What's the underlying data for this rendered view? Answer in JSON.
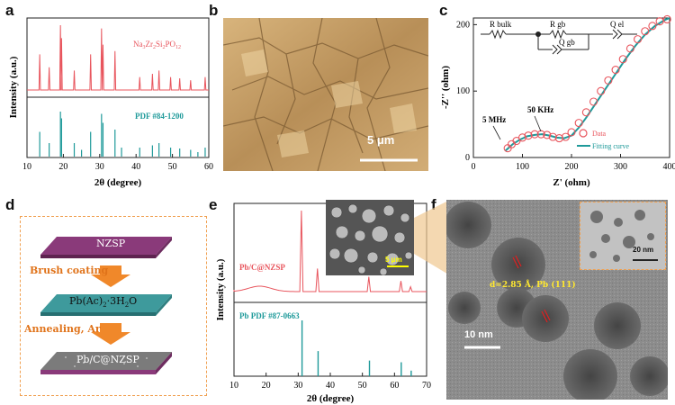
{
  "panels": {
    "a": {
      "label": "a",
      "upper_legend": "Na3Zr2Si2PO12",
      "lower_legend": "PDF #84-1200",
      "xlabel": "2θ (degree)",
      "ylabel": "Intensity (a.u.)",
      "xticks": [
        "10",
        "20",
        "30",
        "40",
        "50",
        "60"
      ],
      "upper_color": "#e8555d",
      "lower_color": "#1f9a9a"
    },
    "b": {
      "label": "b",
      "scale": "5 μm"
    },
    "c": {
      "label": "c",
      "xlabel": "Z' (ohm)",
      "ylabel": "-Z'' (ohm)",
      "xticks": [
        "0",
        "100",
        "200",
        "300",
        "400"
      ],
      "yticks": [
        "0",
        "100",
        "200"
      ],
      "ann_5mhz": "5 MHz",
      "ann_50khz": "50 KHz",
      "legend_data": "Data",
      "legend_fit": "Fitting curve",
      "circuit": {
        "rbulk": "R bulk",
        "rgb": "R gb",
        "qel": "Q el",
        "qgb": "Q gb"
      },
      "data_color": "#e8555d",
      "fit_color": "#1f9a9a"
    },
    "d": {
      "label": "d",
      "layer1": "NZSP",
      "step1": "Brush coating",
      "layer2": "Pb(Ac)2·3H2O",
      "step2": "Annealing, Ar",
      "layer3": "Pb/C@NZSP",
      "arrow_color": "#f0882a",
      "border_color": "#f0a050"
    },
    "e": {
      "label": "e",
      "upper_legend": "Pb/C@NZSP",
      "lower_legend": "Pb PDF #87-0663",
      "xlabel": "2θ (degree)",
      "ylabel": "Intensity (a.u.)",
      "xticks": [
        "10",
        "20",
        "30",
        "40",
        "50",
        "60",
        "70"
      ],
      "inset_scale": "5 μm"
    },
    "f": {
      "label": "f",
      "annotation": "d=2.85 Å, Pb (111)",
      "scale": "10 nm",
      "inset_scale": "20 nm"
    }
  },
  "chart_data": [
    {
      "type": "line",
      "panel": "a",
      "xlim": [
        10,
        60
      ],
      "series": [
        {
          "name": "Na3Zr2Si2PO12",
          "peaks_x": [
            13.5,
            16.1,
            19.2,
            19.5,
            23.0,
            27.5,
            30.5,
            30.9,
            34.2,
            41.0,
            44.5,
            46.3,
            49.5,
            52.0,
            55.0,
            59.0
          ],
          "peaks_y": [
            0.55,
            0.35,
            1.0,
            0.8,
            0.3,
            0.55,
            0.95,
            0.7,
            0.6,
            0.2,
            0.25,
            0.3,
            0.2,
            0.18,
            0.15,
            0.2
          ]
        },
        {
          "name": "PDF #84-1200",
          "peaks_x": [
            13.5,
            16.1,
            19.2,
            19.5,
            23.0,
            25.0,
            27.5,
            30.5,
            30.9,
            34.2,
            36.0,
            41.0,
            44.5,
            46.3,
            49.5,
            52.0,
            55.0,
            57.0,
            59.0
          ],
          "peaks_y": [
            0.55,
            0.3,
            1.0,
            0.85,
            0.3,
            0.15,
            0.55,
            0.95,
            0.75,
            0.6,
            0.2,
            0.2,
            0.25,
            0.3,
            0.2,
            0.18,
            0.15,
            0.1,
            0.2
          ]
        }
      ]
    },
    {
      "type": "scatter",
      "panel": "c",
      "xlim": [
        0,
        400
      ],
      "ylim": [
        0,
        210
      ],
      "series": [
        {
          "name": "Data",
          "x": [
            70,
            78,
            88,
            100,
            112,
            125,
            138,
            150,
            162,
            175,
            188,
            200,
            215,
            230,
            245,
            260,
            275,
            290,
            305,
            320,
            335,
            350,
            365,
            380,
            395
          ],
          "y": [
            14,
            20,
            25,
            30,
            33,
            35,
            35,
            34,
            31,
            29,
            31,
            38,
            52,
            68,
            84,
            100,
            116,
            132,
            148,
            164,
            178,
            190,
            198,
            205,
            208
          ]
        },
        {
          "name": "Fitting curve",
          "x": [
            65,
            80,
            95,
            110,
            125,
            140,
            155,
            170,
            185,
            200,
            215,
            230,
            250,
            270,
            290,
            310,
            330,
            350,
            370,
            390,
            400
          ],
          "y": [
            10,
            20,
            27,
            32,
            34,
            35,
            33,
            30,
            29,
            33,
            45,
            60,
            82,
            104,
            126,
            148,
            168,
            185,
            198,
            207,
            210
          ]
        }
      ]
    },
    {
      "type": "line",
      "panel": "e",
      "xlim": [
        10,
        70
      ],
      "series": [
        {
          "name": "Pb/C@NZSP",
          "peaks_x": [
            31.2,
            36.2,
            52.2,
            62.1,
            65.2
          ],
          "peaks_y": [
            1.0,
            0.3,
            0.2,
            0.15,
            0.08
          ]
        },
        {
          "name": "Pb PDF #87-0663",
          "peaks_x": [
            31.2,
            36.2,
            52.2,
            62.1,
            65.2
          ],
          "peaks_y": [
            1.0,
            0.45,
            0.28,
            0.25,
            0.1
          ]
        }
      ]
    }
  ]
}
